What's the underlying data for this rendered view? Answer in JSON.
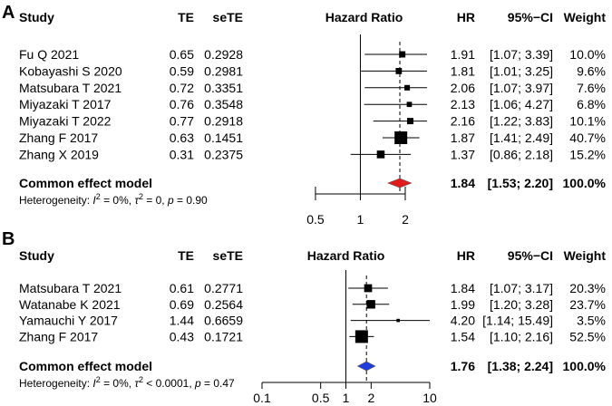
{
  "chart_data": [
    {
      "type": "forest",
      "panel": "A",
      "title": "Hazard Ratio",
      "columns": {
        "study": "Study",
        "te": "TE",
        "sete": "seTE",
        "plot": "Hazard Ratio",
        "hr": "HR",
        "ci": "95%−CI",
        "weight": "Weight"
      },
      "scale": "log",
      "xlim": [
        0.4,
        2.8
      ],
      "ticks": [
        0.5,
        1,
        2
      ],
      "tick_labels": [
        "0.5",
        "1",
        "2"
      ],
      "reference_line": 1,
      "studies": [
        {
          "study": "Fu Q 2021",
          "te": "0.65",
          "sete": "0.2928",
          "hr": 1.91,
          "lo": 1.07,
          "hi": 3.39,
          "hr_text": "1.91",
          "ci_text": "[1.07; 3.39]",
          "weight": 10.0,
          "weight_text": "10.0%"
        },
        {
          "study": "Kobayashi S 2020",
          "te": "0.59",
          "sete": "0.2981",
          "hr": 1.81,
          "lo": 1.01,
          "hi": 3.25,
          "hr_text": "1.81",
          "ci_text": "[1.01; 3.25]",
          "weight": 9.6,
          "weight_text": "9.6%"
        },
        {
          "study": "Matsubara T 2021",
          "te": "0.72",
          "sete": "0.3351",
          "hr": 2.06,
          "lo": 1.07,
          "hi": 3.97,
          "hr_text": "2.06",
          "ci_text": "[1.07; 3.97]",
          "weight": 7.6,
          "weight_text": "7.6%"
        },
        {
          "study": "Miyazaki T 2017",
          "te": "0.76",
          "sete": "0.3548",
          "hr": 2.13,
          "lo": 1.06,
          "hi": 4.27,
          "hr_text": "2.13",
          "ci_text": "[1.06; 4.27]",
          "weight": 6.8,
          "weight_text": "6.8%"
        },
        {
          "study": "Miyazaki T 2022",
          "te": "0.77",
          "sete": "0.2918",
          "hr": 2.16,
          "lo": 1.22,
          "hi": 3.83,
          "hr_text": "2.16",
          "ci_text": "[1.22; 3.83]",
          "weight": 10.1,
          "weight_text": "10.1%"
        },
        {
          "study": "Zhang F 2017",
          "te": "0.63",
          "sete": "0.1451",
          "hr": 1.87,
          "lo": 1.41,
          "hi": 2.49,
          "hr_text": "1.87",
          "ci_text": "[1.41; 2.49]",
          "weight": 40.7,
          "weight_text": "40.7%"
        },
        {
          "study": "Zhang X 2019",
          "te": "0.31",
          "sete": "0.2375",
          "hr": 1.37,
          "lo": 0.86,
          "hi": 2.18,
          "hr_text": "1.37",
          "ci_text": "[0.86; 2.18]",
          "weight": 15.2,
          "weight_text": "15.2%"
        }
      ],
      "summary": {
        "label": "Common effect model",
        "hr": 1.84,
        "lo": 1.53,
        "hi": 2.2,
        "hr_text": "1.84",
        "ci_text": "[1.53; 2.20]",
        "weight_text": "100.0%",
        "color": "#e31a1c"
      },
      "heterogeneity": {
        "prefix": "Heterogeneity: ",
        "i2_sym": "I",
        "i2_sup": "2",
        "i2_val": " = 0%, ",
        "tau_sym": "τ",
        "tau_sup": "2",
        "tau_val": " = 0, ",
        "p_sym": "p",
        "p_val": " = 0.90"
      }
    },
    {
      "type": "forest",
      "panel": "B",
      "title": "Hazard Ratio",
      "columns": {
        "study": "Study",
        "te": "TE",
        "sete": "seTE",
        "plot": "Hazard Ratio",
        "hr": "HR",
        "ci": "95%−CI",
        "weight": "Weight"
      },
      "scale": "log",
      "xlim": [
        0.1,
        10
      ],
      "ticks": [
        0.1,
        0.5,
        1,
        2,
        10
      ],
      "tick_labels": [
        "0.1",
        "0.5",
        "1",
        "2",
        "10"
      ],
      "reference_line": 1,
      "studies": [
        {
          "study": "Matsubara T 2021",
          "te": "0.61",
          "sete": "0.2771",
          "hr": 1.84,
          "lo": 1.07,
          "hi": 3.17,
          "hr_text": "1.84",
          "ci_text": "[1.07;  3.17]",
          "weight": 20.3,
          "weight_text": "20.3%"
        },
        {
          "study": "Watanabe K 2021",
          "te": "0.69",
          "sete": "0.2564",
          "hr": 1.99,
          "lo": 1.2,
          "hi": 3.28,
          "hr_text": "1.99",
          "ci_text": "[1.20;  3.28]",
          "weight": 23.7,
          "weight_text": "23.7%"
        },
        {
          "study": "Yamauchi Y 2017",
          "te": "1.44",
          "sete": "0.6659",
          "hr": 4.2,
          "lo": 1.14,
          "hi": 15.49,
          "hr_text": "4.20",
          "ci_text": "[1.14; 15.49]",
          "weight": 3.5,
          "weight_text": "3.5%"
        },
        {
          "study": "Zhang F 2017",
          "te": "0.43",
          "sete": "0.1721",
          "hr": 1.54,
          "lo": 1.1,
          "hi": 2.16,
          "hr_text": "1.54",
          "ci_text": "[1.10;  2.16]",
          "weight": 52.5,
          "weight_text": "52.5%"
        }
      ],
      "summary": {
        "label": "Common effect model",
        "hr": 1.76,
        "lo": 1.38,
        "hi": 2.24,
        "hr_text": "1.76",
        "ci_text": "[1.38;  2.24]",
        "weight_text": "100.0%",
        "color": "#1f3ddb"
      },
      "heterogeneity": {
        "prefix": "Heterogeneity: ",
        "i2_sym": "I",
        "i2_sup": "2",
        "i2_val": " = 0%, ",
        "tau_sym": "τ",
        "tau_sup": "2",
        "tau_val": " < 0.0001, ",
        "p_sym": "p",
        "p_val": " = 0.47"
      }
    }
  ]
}
